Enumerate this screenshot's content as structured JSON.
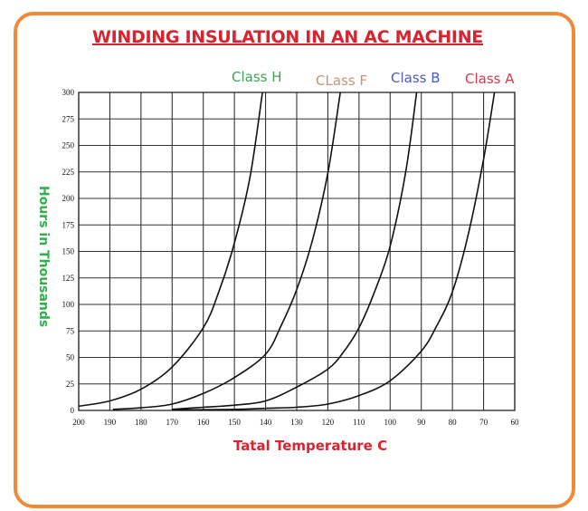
{
  "chart_data": {
    "type": "line",
    "title": "WINDING INSULATION IN AN AC MACHINE",
    "xlabel": "Tatal Temperature C",
    "ylabel": "Hours in Thousands",
    "xlim": [
      200,
      60
    ],
    "ylim": [
      0,
      300
    ],
    "x_ticks": [
      200,
      190,
      180,
      170,
      160,
      150,
      140,
      130,
      120,
      110,
      100,
      90,
      80,
      70,
      60
    ],
    "y_ticks": [
      0,
      25,
      50,
      75,
      100,
      125,
      150,
      175,
      200,
      225,
      250,
      275,
      300
    ],
    "grid": true,
    "legend_position": "top (labels above curves)",
    "series": [
      {
        "name": "Class H",
        "color": "#3aa655",
        "points": [
          [
            200,
            4
          ],
          [
            190,
            9
          ],
          [
            180,
            20
          ],
          [
            170,
            41
          ],
          [
            160,
            78
          ],
          [
            155,
            112
          ],
          [
            150,
            158
          ],
          [
            145,
            220
          ],
          [
            141,
            300
          ]
        ]
      },
      {
        "name": "CLass F",
        "color": "#c0977a",
        "points": [
          [
            189,
            1
          ],
          [
            180,
            2.5
          ],
          [
            170,
            6
          ],
          [
            160,
            16
          ],
          [
            150,
            31
          ],
          [
            140,
            53
          ],
          [
            135,
            80
          ],
          [
            130,
            114
          ],
          [
            125,
            160
          ],
          [
            120,
            224
          ],
          [
            116,
            300
          ]
        ]
      },
      {
        "name": "Class B",
        "color": "#4a5bc0",
        "points": [
          [
            170,
            1
          ],
          [
            160,
            3
          ],
          [
            150,
            5
          ],
          [
            140,
            9
          ],
          [
            130,
            22
          ],
          [
            120,
            39
          ],
          [
            115,
            55
          ],
          [
            110,
            78
          ],
          [
            105,
            112
          ],
          [
            100,
            155
          ],
          [
            95,
            225
          ],
          [
            91.5,
            300
          ]
        ]
      },
      {
        "name": "Class A",
        "color": "#d63a4a",
        "points": [
          [
            170,
            0.5
          ],
          [
            150,
            1
          ],
          [
            140,
            2
          ],
          [
            130,
            3
          ],
          [
            120,
            6
          ],
          [
            110,
            14
          ],
          [
            100,
            28
          ],
          [
            90,
            56
          ],
          [
            85,
            80
          ],
          [
            80,
            112
          ],
          [
            75,
            165
          ],
          [
            70,
            237
          ],
          [
            66.5,
            300
          ]
        ]
      }
    ]
  },
  "labels": {
    "title": "WINDING INSULATION IN AN AC MACHINE",
    "ylabel": "Hours in Thousands",
    "xlabel": "Tatal Temperature C",
    "class_h": "Class H",
    "class_f": "CLass F",
    "class_b": "Class B",
    "class_a": "Class A"
  },
  "colors": {
    "frame_border": "#ef8a3a",
    "title": "#d9232f",
    "ylabel": "#2fb04a",
    "xlabel": "#d9232f"
  }
}
